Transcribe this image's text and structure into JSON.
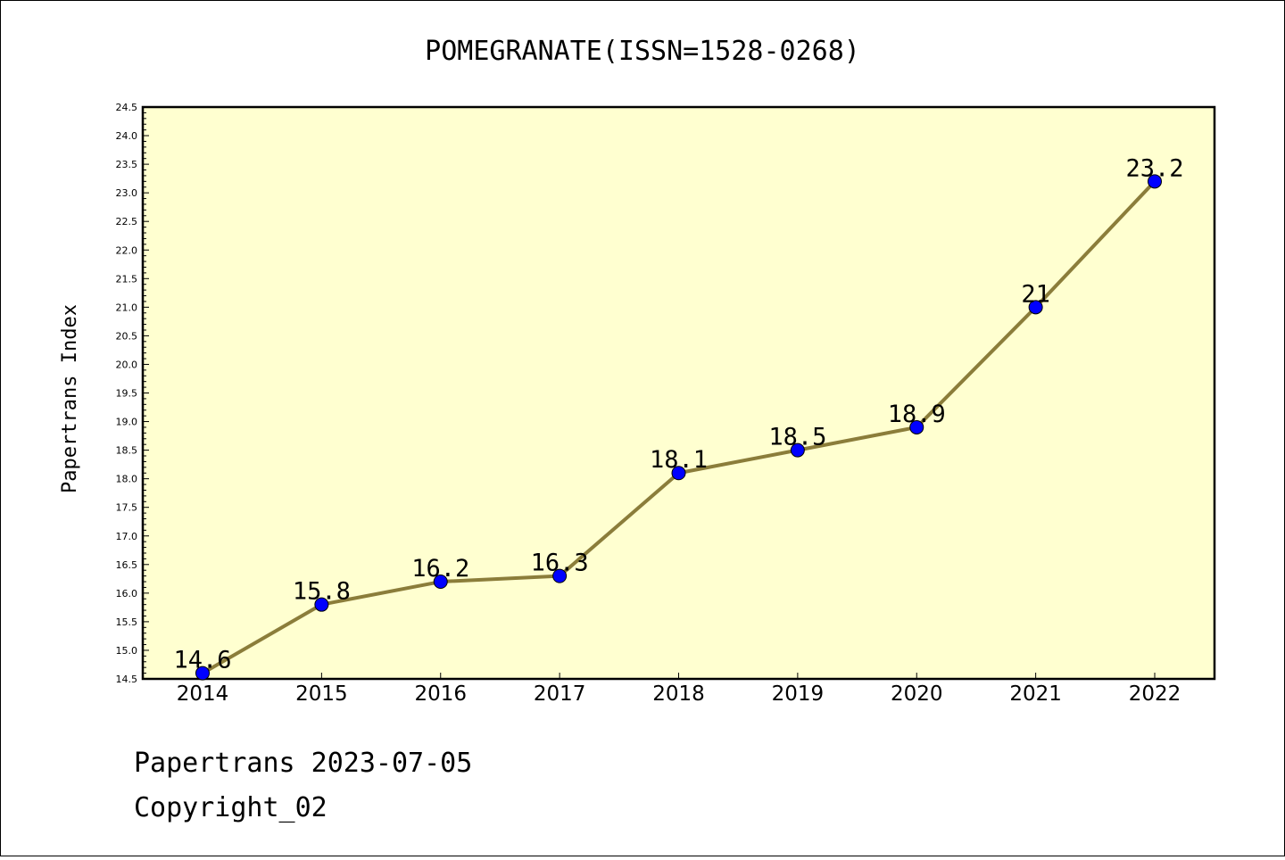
{
  "chart_data": {
    "type": "line",
    "title": "POMEGRANATE(ISSN=1528-0268)",
    "ylabel": "Papertrans Index",
    "xlabel": "",
    "x": [
      "2014",
      "2015",
      "2016",
      "2017",
      "2018",
      "2019",
      "2020",
      "2021",
      "2022"
    ],
    "series": [
      {
        "values": [
          14.6,
          15.8,
          16.2,
          16.3,
          18.1,
          18.5,
          18.9,
          21.0,
          23.2
        ],
        "data_labels": [
          "14.6",
          "15.8",
          "16.2",
          "16.3",
          "18.1",
          "18.5",
          "18.9",
          "21",
          "23.2"
        ]
      }
    ],
    "ylim": [
      14.5,
      24.5
    ],
    "y_ticks": [
      "14.5",
      "15.0",
      "15.5",
      "16.0",
      "16.5",
      "17.0",
      "17.5",
      "18.0",
      "18.5",
      "19.0",
      "19.5",
      "20.0",
      "20.5",
      "21.0",
      "21.5",
      "22.0",
      "22.5",
      "23.0",
      "23.5",
      "24.0",
      "24.5"
    ],
    "grid": false,
    "colors": {
      "plot_background": "#ffffd0",
      "line": "#8b7d3a",
      "marker": "#0000ff"
    }
  },
  "footer": {
    "line1": "Papertrans 2023-07-05",
    "line2": "Copyright_02"
  }
}
